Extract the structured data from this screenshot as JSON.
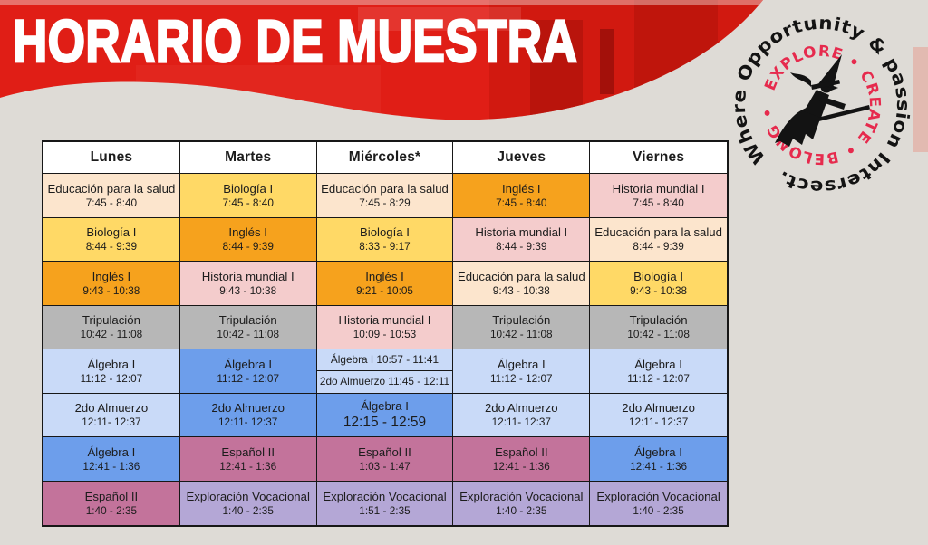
{
  "banner": {
    "title": "HORARIO DE MUESTRA"
  },
  "logo": {
    "outer_text": "Where Opportunity & passion Intersect.",
    "inner_text": "EXPLORE • CREATE • BELONG •"
  },
  "colors": {
    "page_bg": "#DEDBD6",
    "banner_red": "#E01E16",
    "logo_red": "#E62A4D",
    "logo_black": "#131313",
    "header_bg": "#FFFFFF",
    "peach": "#FCE5CD",
    "yellow": "#FFD966",
    "orange": "#F6A21D",
    "pink": "#F4CCCC",
    "gray": "#B7B7B7",
    "lightblue": "#C9DAF8",
    "blue": "#6D9EEB",
    "mauve": "#C3739B",
    "purple": "#B4A7D6"
  },
  "schedule": {
    "headers": [
      "Lunes",
      "Martes",
      "Miércoles*",
      "Jueves",
      "Viernes"
    ],
    "rows": [
      [
        {
          "title": "Educación para la salud",
          "time": "7:45 - 8:40",
          "color": "peach"
        },
        {
          "title": "Biología I",
          "time": "7:45 - 8:40",
          "color": "yellow"
        },
        {
          "title": "Educación para la salud",
          "time": "7:45 - 8:29",
          "color": "peach"
        },
        {
          "title": "Inglés I",
          "time": "7:45 - 8:40",
          "color": "orange"
        },
        {
          "title": "Historia mundial I",
          "time": "7:45 - 8:40",
          "color": "pink"
        }
      ],
      [
        {
          "title": "Biología I",
          "time": "8:44 - 9:39",
          "color": "yellow"
        },
        {
          "title": "Inglés I",
          "time": "8:44 - 9:39",
          "color": "orange"
        },
        {
          "title": "Biología I",
          "time": "8:33 - 9:17",
          "color": "yellow"
        },
        {
          "title": "Historia mundial I",
          "time": "8:44 - 9:39",
          "color": "pink"
        },
        {
          "title": "Educación para la salud",
          "time": "8:44 - 9:39",
          "color": "peach"
        }
      ],
      [
        {
          "title": "Inglés I",
          "time": "9:43 - 10:38",
          "color": "orange"
        },
        {
          "title": "Historia mundial I",
          "time": "9:43 - 10:38",
          "color": "pink"
        },
        {
          "title": "Inglés I",
          "time": "9:21 - 10:05",
          "color": "orange"
        },
        {
          "title": "Educación para la salud",
          "time": "9:43 - 10:38",
          "color": "peach"
        },
        {
          "title": "Biología I",
          "time": "9:43 - 10:38",
          "color": "yellow"
        }
      ],
      [
        {
          "title": "Tripulación",
          "time": "10:42 - 11:08",
          "color": "gray"
        },
        {
          "title": "Tripulación",
          "time": "10:42 - 11:08",
          "color": "gray"
        },
        {
          "title": "Historia mundial I",
          "time": "10:09 - 10:53",
          "color": "pink"
        },
        {
          "title": "Tripulación",
          "time": "10:42 - 11:08",
          "color": "gray"
        },
        {
          "title": "Tripulación",
          "time": "10:42 - 11:08",
          "color": "gray"
        }
      ],
      [
        {
          "title": "Álgebra I",
          "time": "11:12 - 12:07",
          "color": "lightblue"
        },
        {
          "title": "Álgebra I",
          "time": "11:12 - 12:07",
          "color": "blue"
        },
        {
          "split": [
            {
              "text": "Álgebra I 10:57 - 11:41",
              "color": "lightblue"
            },
            {
              "text": "2do Almuerzo 11:45 - 12:11",
              "color": "lightblue"
            }
          ]
        },
        {
          "title": "Álgebra I",
          "time": "11:12 - 12:07",
          "color": "lightblue"
        },
        {
          "title": "Álgebra I",
          "time": "11:12 - 12:07",
          "color": "lightblue"
        }
      ],
      [
        {
          "title": "2do Almuerzo",
          "time": "12:11- 12:37",
          "color": "lightblue"
        },
        {
          "title": "2do Almuerzo",
          "time": "12:11- 12:37",
          "color": "blue"
        },
        {
          "title": "Álgebra I",
          "time": "12:15 - 12:59",
          "color": "blue",
          "big_time": true
        },
        {
          "title": "2do Almuerzo",
          "time": "12:11- 12:37",
          "color": "lightblue"
        },
        {
          "title": "2do Almuerzo",
          "time": "12:11- 12:37",
          "color": "lightblue"
        }
      ],
      [
        {
          "title": "Álgebra I",
          "time": "12:41 - 1:36",
          "color": "blue"
        },
        {
          "title": "Español II",
          "time": "12:41 - 1:36",
          "color": "mauve"
        },
        {
          "title": "Español II",
          "time": "1:03 - 1:47",
          "color": "mauve"
        },
        {
          "title": "Español II",
          "time": "12:41 - 1:36",
          "color": "mauve"
        },
        {
          "title": "Álgebra I",
          "time": "12:41 - 1:36",
          "color": "blue"
        }
      ],
      [
        {
          "title": "Español II",
          "time": "1:40 - 2:35",
          "color": "mauve"
        },
        {
          "title": "Exploración Vocacional",
          "time": "1:40 - 2:35",
          "color": "purple"
        },
        {
          "title": "Exploración Vocacional",
          "time": "1:51 - 2:35",
          "color": "purple"
        },
        {
          "title": "Exploración Vocacional",
          "time": "1:40 - 2:35",
          "color": "purple"
        },
        {
          "title": "Exploración Vocacional",
          "time": "1:40 - 2:35",
          "color": "purple"
        }
      ]
    ]
  }
}
